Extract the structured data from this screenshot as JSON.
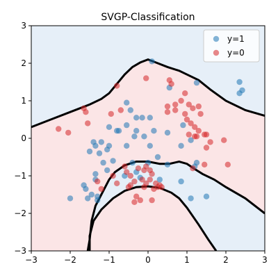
{
  "chart_data": {
    "type": "scatter",
    "title": "SVGP-Classification",
    "xlabel": "",
    "ylabel": "",
    "xlim": [
      -3,
      3
    ],
    "ylim": [
      -3,
      3
    ],
    "xticks": [
      -3,
      -2,
      -1,
      0,
      1,
      2,
      3
    ],
    "yticks": [
      -3,
      -2,
      -1,
      0,
      1,
      2,
      3
    ],
    "grid": false,
    "legend_position": "top-right",
    "region_colors": {
      "class_1": "#e6eff8",
      "class_0": "#fbe5e6"
    },
    "boundary_color": "#000000",
    "decision_boundary": [
      {
        "name": "",
        "points": [
          [
            -3,
            0.3
          ],
          [
            -2.5,
            0.5
          ],
          [
            -2,
            0.7
          ],
          [
            -1.5,
            0.9
          ],
          [
            -1.2,
            1.05
          ],
          [
            -1,
            1.2
          ],
          [
            -0.8,
            1.45
          ],
          [
            -0.6,
            1.7
          ],
          [
            -0.4,
            1.9
          ],
          [
            -0.2,
            2.02
          ],
          [
            0,
            2.1
          ],
          [
            0.2,
            2.02
          ],
          [
            0.5,
            1.9
          ],
          [
            0.8,
            1.8
          ],
          [
            1,
            1.7
          ],
          [
            1.3,
            1.55
          ],
          [
            1.6,
            1.3
          ],
          [
            2,
            1
          ],
          [
            2.5,
            0.75
          ],
          [
            3,
            0.6
          ]
        ]
      },
      {
        "name": "",
        "points": [
          [
            -1.55,
            -3
          ],
          [
            -1.5,
            -2.7
          ],
          [
            -1.45,
            -2.2
          ],
          [
            -1.35,
            -1.8
          ],
          [
            -1.2,
            -1.5
          ],
          [
            -1,
            -1.1
          ],
          [
            -0.85,
            -0.9
          ],
          [
            -0.6,
            -0.72
          ],
          [
            -0.3,
            -0.62
          ],
          [
            0,
            -0.62
          ],
          [
            0.3,
            -0.68
          ],
          [
            0.55,
            -0.68
          ],
          [
            0.8,
            -0.62
          ],
          [
            1,
            -0.68
          ],
          [
            1.2,
            -0.82
          ],
          [
            1.4,
            -0.95
          ],
          [
            1.7,
            -1.1
          ],
          [
            2,
            -1.3
          ],
          [
            2.5,
            -1.6
          ],
          [
            3,
            -2
          ]
        ]
      },
      {
        "name": "",
        "points": [
          [
            -1.5,
            -3
          ],
          [
            -1.5,
            -2.6
          ],
          [
            -1.4,
            -2.2
          ],
          [
            -1.2,
            -1.9
          ],
          [
            -0.9,
            -1.6
          ],
          [
            -0.6,
            -1.4
          ],
          [
            -0.3,
            -1.3
          ],
          [
            0,
            -1.28
          ],
          [
            0.3,
            -1.32
          ],
          [
            0.6,
            -1.45
          ],
          [
            0.8,
            -1.6
          ],
          [
            1,
            -1.85
          ],
          [
            1.3,
            -2.3
          ],
          [
            1.55,
            -2.7
          ],
          [
            1.75,
            -3
          ]
        ]
      }
    ],
    "series": [
      {
        "name": "y=1",
        "color": "#1f77b4",
        "points": [
          [
            0.1,
            2.05
          ],
          [
            0.55,
            1.35
          ],
          [
            1.25,
            1.48
          ],
          [
            2.35,
            1.5
          ],
          [
            2.35,
            1.2
          ],
          [
            2.42,
            1.28
          ],
          [
            -0.55,
            0.95
          ],
          [
            -0.45,
            0.75
          ],
          [
            -0.3,
            0.55
          ],
          [
            -0.15,
            0.55
          ],
          [
            0.05,
            0.55
          ],
          [
            -0.3,
            0.2
          ],
          [
            -0.75,
            0.2
          ],
          [
            -0.55,
            0.35
          ],
          [
            -0.35,
            0.05
          ],
          [
            -1,
            0.3
          ],
          [
            -0.8,
            0.2
          ],
          [
            -0.1,
            0.05
          ],
          [
            0.15,
            0.2
          ],
          [
            0.5,
            0.15
          ],
          [
            0.9,
            0.35
          ],
          [
            0.85,
            -0.2
          ],
          [
            1.1,
            -0.05
          ],
          [
            1.2,
            -0.75
          ],
          [
            -1.4,
            -0.1
          ],
          [
            -1.35,
            -0.2
          ],
          [
            -1.2,
            -0.1
          ],
          [
            -1.5,
            -0.35
          ],
          [
            -1.25,
            -0.4
          ],
          [
            -1,
            -0.2
          ],
          [
            -1.05,
            -0.3
          ],
          [
            -0.55,
            -0.2
          ],
          [
            -1.15,
            -0.65
          ],
          [
            -1.35,
            -0.95
          ],
          [
            -1.35,
            -1.1
          ],
          [
            -1.05,
            -0.85
          ],
          [
            -0.9,
            -0.6
          ],
          [
            -0.4,
            -0.65
          ],
          [
            -0.3,
            -0.9
          ],
          [
            -0.6,
            -1
          ],
          [
            -0.2,
            -1.05
          ],
          [
            0,
            -0.65
          ],
          [
            0.05,
            -0.2
          ],
          [
            0.25,
            -0.5
          ],
          [
            0.5,
            -0.7
          ],
          [
            0.85,
            -1.15
          ],
          [
            1.25,
            -0.65
          ],
          [
            -1.6,
            -1.35
          ],
          [
            -1.65,
            -1.25
          ],
          [
            -1.55,
            -1.6
          ],
          [
            -1.45,
            -1.5
          ],
          [
            -1.3,
            -1.55
          ],
          [
            -1.3,
            -1.65
          ],
          [
            -2,
            -1.6
          ],
          [
            0.3,
            -1.1
          ],
          [
            1.1,
            -1.6
          ],
          [
            1.5,
            -1.55
          ]
        ]
      },
      {
        "name": "y=0",
        "color": "#d62728",
        "points": [
          [
            -0.05,
            1.6
          ],
          [
            -0.8,
            1.4
          ],
          [
            0.55,
            1.55
          ],
          [
            0.6,
            1.45
          ],
          [
            0.95,
            1.2
          ],
          [
            0.85,
            1.0
          ],
          [
            0.7,
            0.9
          ],
          [
            0.5,
            0.85
          ],
          [
            0.5,
            0.7
          ],
          [
            0.7,
            0.75
          ],
          [
            0.95,
            0.65
          ],
          [
            1.15,
            0.8
          ],
          [
            1.05,
            0.9
          ],
          [
            1.3,
            0.85
          ],
          [
            1.35,
            0.65
          ],
          [
            1.1,
            0.4
          ],
          [
            1.2,
            0.3
          ],
          [
            1.3,
            0.2
          ],
          [
            1.2,
            0.05
          ],
          [
            1.05,
            0.1
          ],
          [
            1.0,
            0.5
          ],
          [
            1.25,
            0.05
          ],
          [
            1.5,
            0.1
          ],
          [
            1.6,
            -0.1
          ],
          [
            1.5,
            -0.25
          ],
          [
            1.45,
            0.1
          ],
          [
            1.95,
            -0.05
          ],
          [
            2.05,
            -0.7
          ],
          [
            1.45,
            -0.7
          ],
          [
            1.15,
            -0.8
          ],
          [
            -1.65,
            0.8
          ],
          [
            -1.6,
            0.7
          ],
          [
            -1.55,
            0.4
          ],
          [
            -0.95,
            0.65
          ],
          [
            -0.7,
            0.75
          ],
          [
            -2.3,
            0.25
          ],
          [
            -2.05,
            0.15
          ],
          [
            -1.3,
            -1.15
          ],
          [
            -1.2,
            -1.35
          ],
          [
            -0.9,
            -1.0
          ],
          [
            -0.8,
            -1.2
          ],
          [
            -0.6,
            -0.75
          ],
          [
            -0.55,
            -0.9
          ],
          [
            -0.45,
            -1.0
          ],
          [
            -0.35,
            -1.15
          ],
          [
            -0.45,
            -1.25
          ],
          [
            -0.5,
            -1.3
          ],
          [
            -0.25,
            -0.8
          ],
          [
            -0.1,
            -0.85
          ],
          [
            -0.15,
            -1.1
          ],
          [
            -0.05,
            -1.2
          ],
          [
            0.05,
            -1.1
          ],
          [
            0.1,
            -0.95
          ],
          [
            0.2,
            -1.2
          ],
          [
            0.15,
            -1.35
          ],
          [
            -0.1,
            -1.3
          ],
          [
            0.25,
            -1.3
          ],
          [
            0.35,
            -1.3
          ],
          [
            -0.3,
            -1.55
          ],
          [
            -0.35,
            -1.7
          ],
          [
            -0.2,
            -1.65
          ],
          [
            0.1,
            -1.65
          ],
          [
            -0.05,
            -0.75
          ],
          [
            0.05,
            -0.85
          ],
          [
            0.3,
            -1.25
          ]
        ]
      }
    ]
  }
}
